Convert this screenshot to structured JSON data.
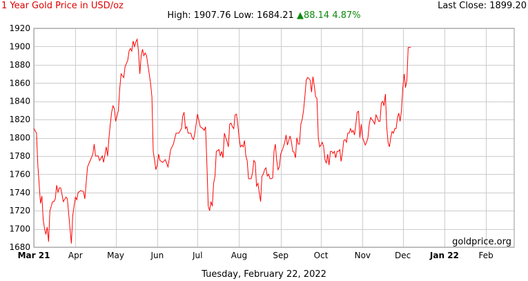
{
  "header": {
    "title": "1 Year Gold Price in USD/oz",
    "last_close_label": "Last Close: 1899.20",
    "high_label": "High: 1907.76",
    "low_label": "Low: 1684.21",
    "change_arrow": "▲",
    "change_value": "88.14",
    "change_pct": "4.87%"
  },
  "watermark": "goldprice.org",
  "footer_date": "Tuesday, February 22, 2022",
  "colors": {
    "line": "#ff0000",
    "grid": "#cccccc",
    "title": "#e00000",
    "up": "#0b8a0b"
  },
  "chart_data": {
    "type": "line",
    "title": "1 Year Gold Price in USD/oz",
    "xlabel": "",
    "ylabel": "",
    "ylim": [
      1680,
      1920
    ],
    "grid": true,
    "yticks": [
      1680,
      1700,
      1720,
      1740,
      1760,
      1780,
      1800,
      1820,
      1840,
      1860,
      1880,
      1900,
      1920
    ],
    "xticks": [
      {
        "label": "Mar 21",
        "day": 0,
        "bold": true
      },
      {
        "label": "Apr",
        "day": 31,
        "bold": false
      },
      {
        "label": "May",
        "day": 61,
        "bold": false
      },
      {
        "label": "Jun",
        "day": 92,
        "bold": false
      },
      {
        "label": "Jul",
        "day": 122,
        "bold": false
      },
      {
        "label": "Aug",
        "day": 153,
        "bold": false
      },
      {
        "label": "Sep",
        "day": 184,
        "bold": false
      },
      {
        "label": "Oct",
        "day": 214,
        "bold": false
      },
      {
        "label": "Nov",
        "day": 245,
        "bold": false
      },
      {
        "label": "Dec",
        "day": 275,
        "bold": false
      },
      {
        "label": "Jan 22",
        "day": 306,
        "bold": true
      },
      {
        "label": "Feb",
        "day": 337,
        "bold": false
      }
    ],
    "xlim_days": [
      0,
      358
    ],
    "series": [
      {
        "values": [
          [
            0,
            1810
          ],
          [
            2,
            1805
          ],
          [
            3,
            1770
          ],
          [
            5,
            1728
          ],
          [
            6,
            1736
          ],
          [
            7,
            1710
          ],
          [
            8,
            1700
          ],
          [
            9,
            1694
          ],
          [
            10,
            1702
          ],
          [
            11,
            1686
          ],
          [
            12,
            1720
          ],
          [
            13,
            1725
          ],
          [
            14,
            1730
          ],
          [
            15,
            1730
          ],
          [
            16,
            1733
          ],
          [
            17,
            1748
          ],
          [
            18,
            1740
          ],
          [
            19,
            1745
          ],
          [
            20,
            1745
          ],
          [
            21,
            1738
          ],
          [
            22,
            1730
          ],
          [
            24,
            1735
          ],
          [
            25,
            1733
          ],
          [
            27,
            1700
          ],
          [
            28,
            1684
          ],
          [
            29,
            1715
          ],
          [
            31,
            1735
          ],
          [
            32,
            1732
          ],
          [
            33,
            1740
          ],
          [
            35,
            1742
          ],
          [
            37,
            1741
          ],
          [
            38,
            1733
          ],
          [
            40,
            1768
          ],
          [
            42,
            1775
          ],
          [
            44,
            1782
          ],
          [
            45,
            1793
          ],
          [
            46,
            1780
          ],
          [
            48,
            1780
          ],
          [
            49,
            1775
          ],
          [
            51,
            1780
          ],
          [
            52,
            1773
          ],
          [
            54,
            1790
          ],
          [
            55,
            1780
          ],
          [
            56,
            1800
          ],
          [
            57,
            1815
          ],
          [
            58,
            1828
          ],
          [
            59,
            1835
          ],
          [
            60,
            1832
          ],
          [
            61,
            1818
          ],
          [
            63,
            1830
          ],
          [
            64,
            1853
          ],
          [
            65,
            1870
          ],
          [
            67,
            1866
          ],
          [
            68,
            1878
          ],
          [
            70,
            1885
          ],
          [
            71,
            1895
          ],
          [
            72,
            1898
          ],
          [
            73,
            1895
          ],
          [
            74,
            1906
          ],
          [
            75,
            1900
          ],
          [
            76,
            1905
          ],
          [
            77,
            1908
          ],
          [
            78,
            1895
          ],
          [
            79,
            1870
          ],
          [
            80,
            1890
          ],
          [
            81,
            1897
          ],
          [
            82,
            1890
          ],
          [
            83,
            1893
          ],
          [
            84,
            1890
          ],
          [
            86,
            1870
          ],
          [
            87,
            1860
          ],
          [
            88,
            1845
          ],
          [
            89,
            1785
          ],
          [
            90,
            1775
          ],
          [
            91,
            1765
          ],
          [
            92,
            1770
          ],
          [
            93,
            1782
          ],
          [
            94,
            1775
          ],
          [
            96,
            1773
          ],
          [
            98,
            1776
          ],
          [
            100,
            1768
          ],
          [
            102,
            1787
          ],
          [
            104,
            1793
          ],
          [
            106,
            1805
          ],
          [
            108,
            1805
          ],
          [
            110,
            1810
          ],
          [
            111,
            1824
          ],
          [
            112,
            1828
          ],
          [
            113,
            1810
          ],
          [
            114,
            1812
          ],
          [
            115,
            1805
          ],
          [
            117,
            1805
          ],
          [
            118,
            1800
          ],
          [
            119,
            1798
          ],
          [
            120,
            1805
          ],
          [
            121,
            1815
          ],
          [
            122,
            1826
          ],
          [
            124,
            1812
          ],
          [
            126,
            1810
          ],
          [
            127,
            1808
          ],
          [
            128,
            1812
          ],
          [
            129,
            1770
          ],
          [
            130,
            1725
          ],
          [
            131,
            1720
          ],
          [
            132,
            1730
          ],
          [
            133,
            1725
          ],
          [
            134,
            1750
          ],
          [
            135,
            1758
          ],
          [
            136,
            1785
          ],
          [
            138,
            1787
          ],
          [
            139,
            1780
          ],
          [
            140,
            1785
          ],
          [
            141,
            1778
          ],
          [
            142,
            1805
          ],
          [
            143,
            1800
          ],
          [
            144,
            1796
          ],
          [
            145,
            1790
          ],
          [
            146,
            1815
          ],
          [
            147,
            1816
          ],
          [
            148,
            1812
          ],
          [
            149,
            1810
          ],
          [
            150,
            1825
          ],
          [
            151,
            1826
          ],
          [
            152,
            1815
          ],
          [
            153,
            1800
          ],
          [
            154,
            1790
          ],
          [
            155,
            1792
          ],
          [
            156,
            1790
          ],
          [
            157,
            1797
          ],
          [
            158,
            1780
          ],
          [
            159,
            1775
          ],
          [
            160,
            1755
          ],
          [
            162,
            1755
          ],
          [
            163,
            1762
          ],
          [
            164,
            1775
          ],
          [
            165,
            1773
          ],
          [
            166,
            1747
          ],
          [
            167,
            1750
          ],
          [
            168,
            1740
          ],
          [
            169,
            1730
          ],
          [
            170,
            1758
          ],
          [
            171,
            1760
          ],
          [
            172,
            1765
          ],
          [
            173,
            1767
          ],
          [
            174,
            1758
          ],
          [
            175,
            1760
          ],
          [
            176,
            1755
          ],
          [
            177,
            1755
          ],
          [
            178,
            1756
          ],
          [
            179,
            1785
          ],
          [
            180,
            1793
          ],
          [
            181,
            1775
          ],
          [
            182,
            1765
          ],
          [
            183,
            1768
          ],
          [
            184,
            1782
          ],
          [
            185,
            1786
          ],
          [
            186,
            1790
          ],
          [
            187,
            1795
          ],
          [
            188,
            1803
          ],
          [
            189,
            1792
          ],
          [
            190,
            1797
          ],
          [
            191,
            1802
          ],
          [
            192,
            1795
          ],
          [
            193,
            1785
          ],
          [
            194,
            1784
          ],
          [
            195,
            1778
          ],
          [
            196,
            1800
          ],
          [
            197,
            1793
          ],
          [
            198,
            1793
          ],
          [
            199,
            1815
          ],
          [
            200,
            1820
          ],
          [
            201,
            1830
          ],
          [
            202,
            1845
          ],
          [
            203,
            1863
          ],
          [
            204,
            1866
          ],
          [
            205,
            1865
          ],
          [
            206,
            1863
          ],
          [
            207,
            1850
          ],
          [
            208,
            1867
          ],
          [
            209,
            1857
          ],
          [
            210,
            1845
          ],
          [
            211,
            1843
          ],
          [
            212,
            1800
          ],
          [
            213,
            1790
          ],
          [
            214,
            1792
          ],
          [
            215,
            1795
          ],
          [
            216,
            1790
          ],
          [
            217,
            1776
          ],
          [
            218,
            1772
          ],
          [
            219,
            1782
          ],
          [
            220,
            1770
          ],
          [
            221,
            1785
          ],
          [
            222,
            1785
          ],
          [
            223,
            1783
          ],
          [
            224,
            1785
          ],
          [
            225,
            1778
          ],
          [
            226,
            1785
          ],
          [
            227,
            1785
          ],
          [
            228,
            1787
          ],
          [
            229,
            1774
          ],
          [
            230,
            1784
          ],
          [
            231,
            1797
          ],
          [
            232,
            1798
          ],
          [
            233,
            1795
          ],
          [
            234,
            1805
          ],
          [
            235,
            1805
          ],
          [
            236,
            1810
          ],
          [
            237,
            1806
          ],
          [
            238,
            1808
          ],
          [
            239,
            1803
          ],
          [
            240,
            1815
          ],
          [
            241,
            1828
          ],
          [
            242,
            1829
          ],
          [
            243,
            1800
          ],
          [
            244,
            1815
          ],
          [
            245,
            1800
          ],
          [
            246,
            1796
          ],
          [
            247,
            1792
          ],
          [
            248,
            1795
          ],
          [
            249,
            1800
          ],
          [
            250,
            1815
          ],
          [
            251,
            1822
          ],
          [
            252,
            1820
          ],
          [
            253,
            1818
          ],
          [
            254,
            1815
          ],
          [
            255,
            1825
          ],
          [
            256,
            1822
          ],
          [
            257,
            1818
          ],
          [
            258,
            1818
          ],
          [
            259,
            1838
          ],
          [
            260,
            1840
          ],
          [
            261,
            1835
          ],
          [
            262,
            1848
          ],
          [
            263,
            1812
          ],
          [
            264,
            1795
          ],
          [
            265,
            1790
          ],
          [
            266,
            1800
          ],
          [
            267,
            1807
          ],
          [
            268,
            1805
          ],
          [
            269,
            1810
          ],
          [
            270,
            1810
          ],
          [
            271,
            1822
          ],
          [
            272,
            1827
          ],
          [
            273,
            1818
          ],
          [
            274,
            1830
          ],
          [
            275,
            1855
          ],
          [
            276,
            1870
          ],
          [
            277,
            1855
          ],
          [
            278,
            1863
          ],
          [
            279,
            1899
          ],
          [
            281,
            1899
          ]
        ]
      }
    ]
  }
}
